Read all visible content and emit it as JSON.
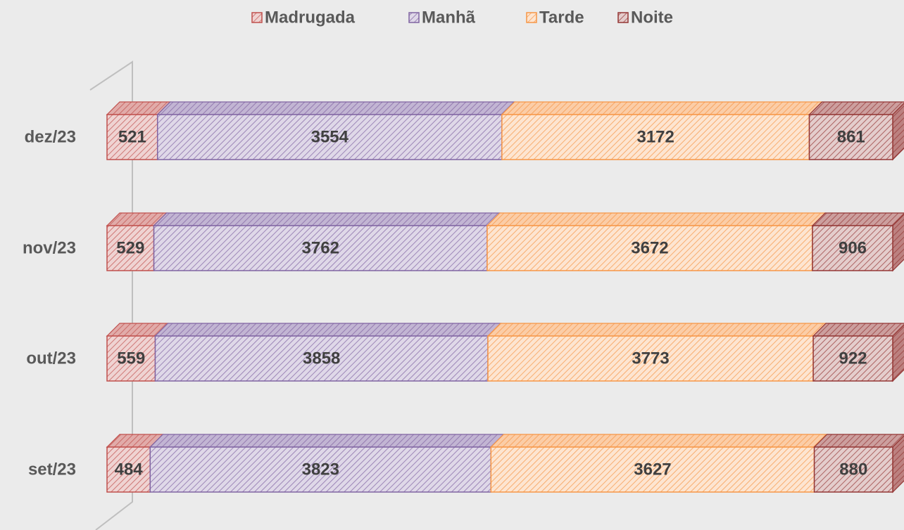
{
  "chart_data": {
    "type": "bar",
    "orientation": "horizontal",
    "stacking": "percent",
    "categories": [
      "dez/23",
      "nov/23",
      "out/23",
      "set/23"
    ],
    "series": [
      {
        "name": "Madrugada",
        "color": "#c0504d",
        "values": [
          521,
          529,
          559,
          484
        ]
      },
      {
        "name": "Manhã",
        "color": "#8064a2",
        "values": [
          3554,
          3762,
          3858,
          3823
        ]
      },
      {
        "name": "Tarde",
        "color": "#f79646",
        "values": [
          3172,
          3672,
          3773,
          3627
        ]
      },
      {
        "name": "Noite",
        "color": "#943634",
        "values": [
          861,
          906,
          922,
          880
        ]
      }
    ],
    "legend": "top"
  }
}
